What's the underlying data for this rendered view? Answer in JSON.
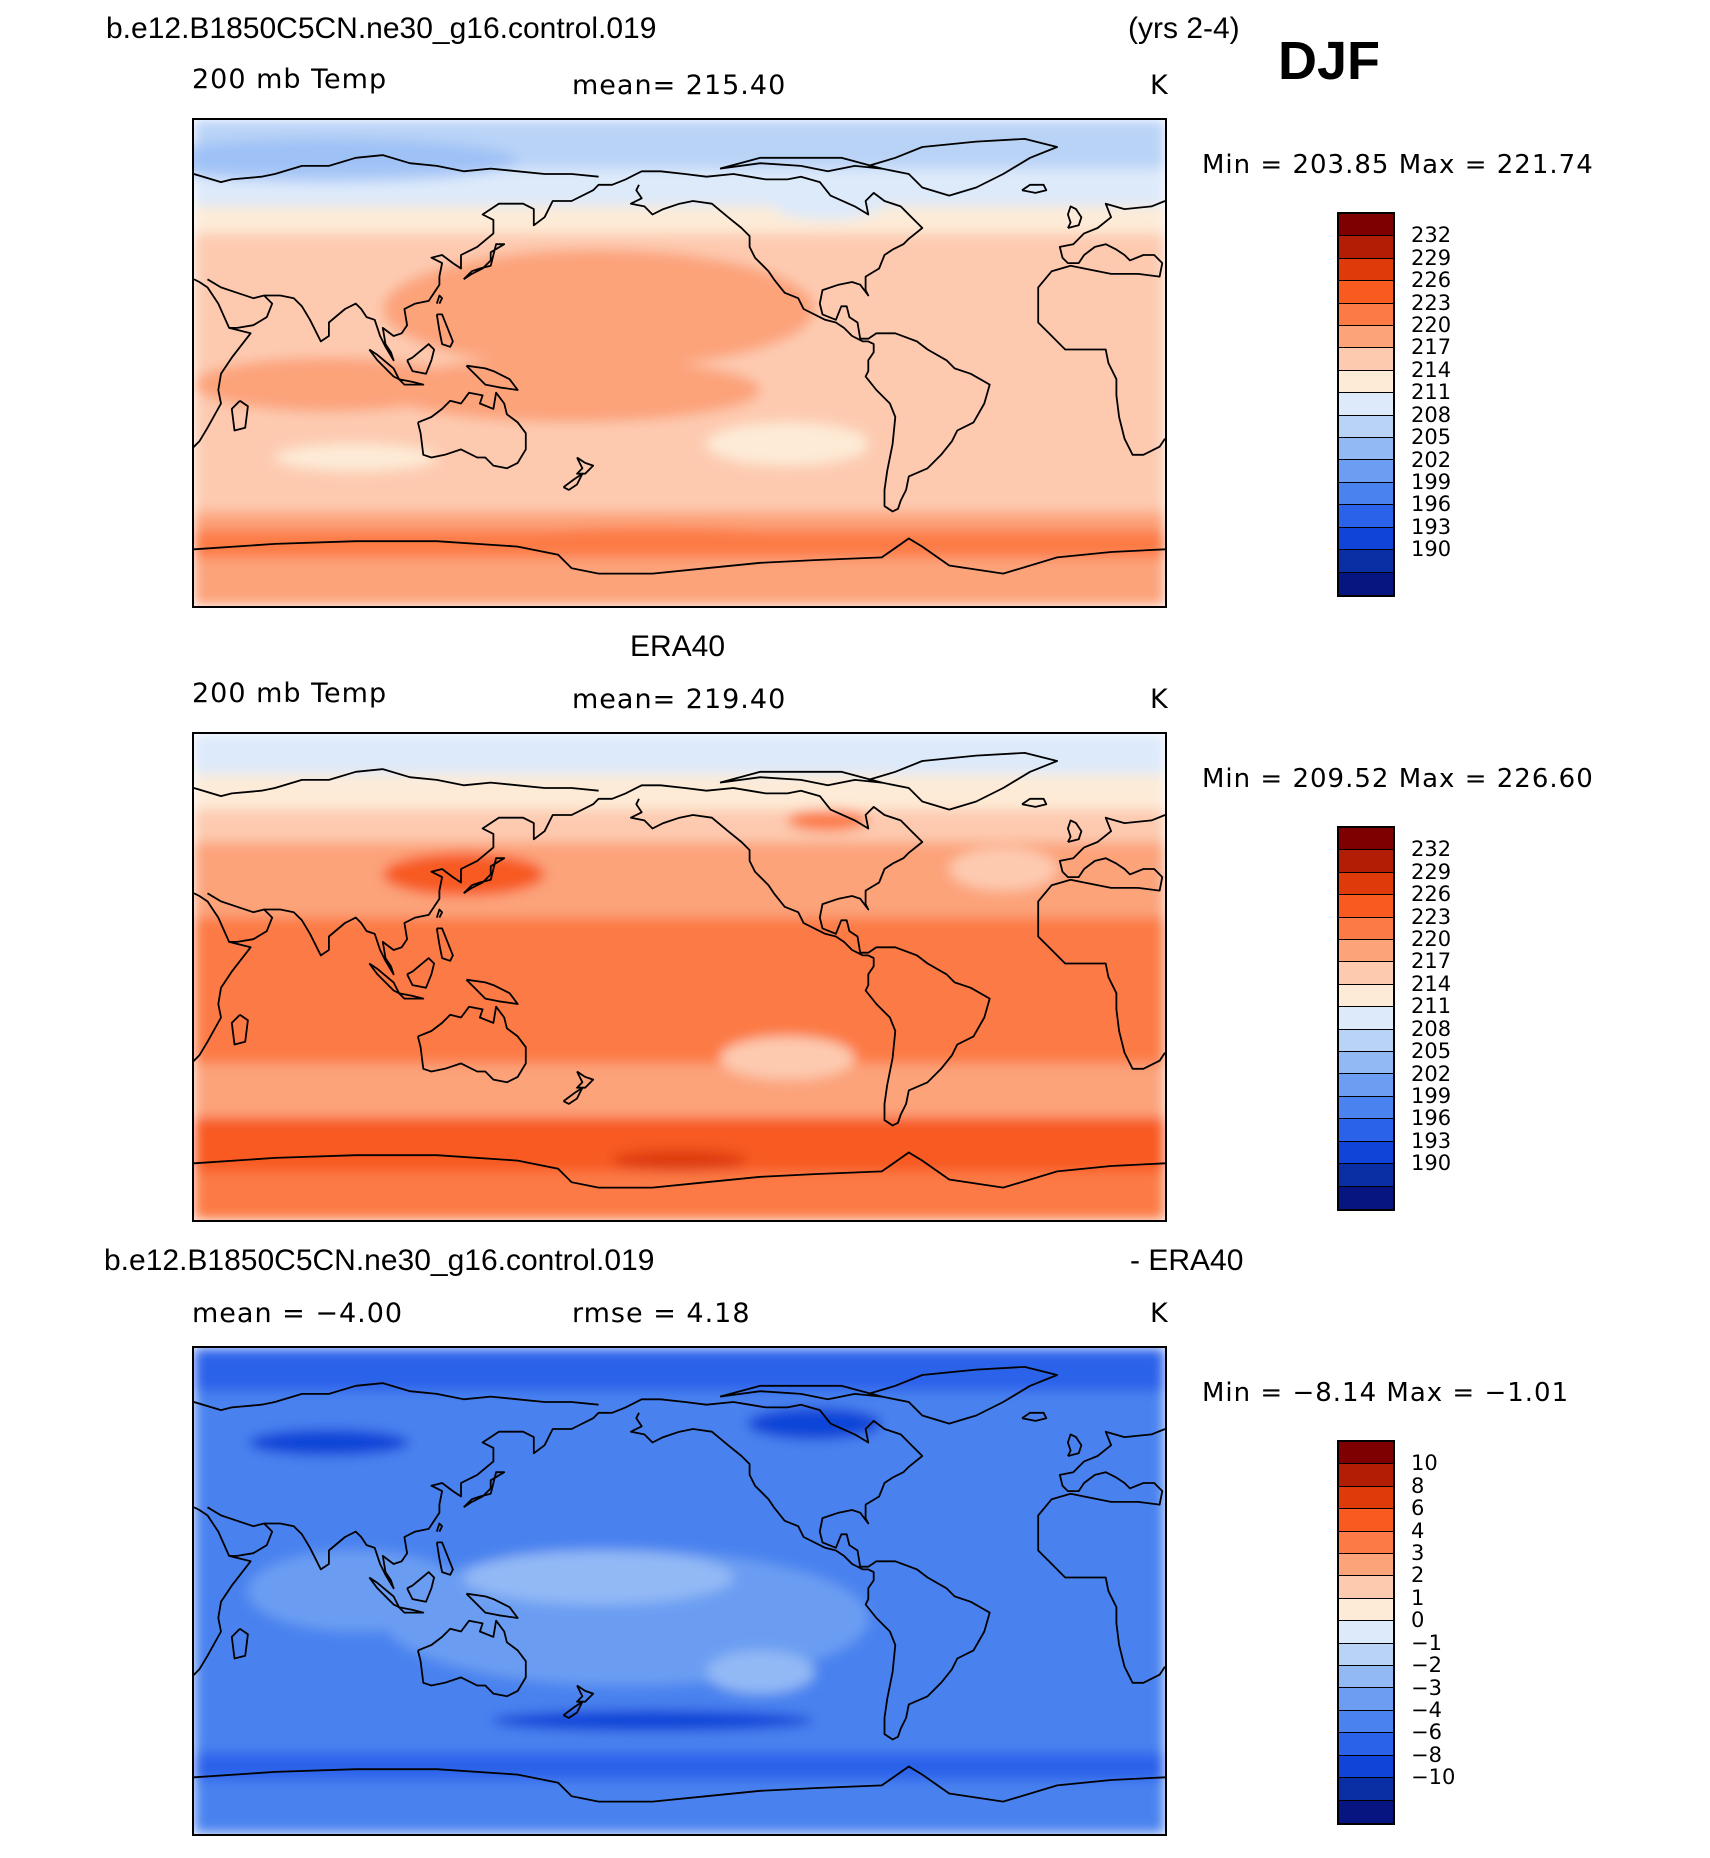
{
  "header": {
    "case_name": "b.e12.B1850C5CN.ne30_g16.control.019",
    "years": "(yrs 2-4)",
    "season": "DJF"
  },
  "panels": [
    {
      "id": "model",
      "title": "",
      "variable": "200 mb Temp",
      "stat": "mean=  215.40",
      "units": "K",
      "minmax": "Min  =  203.85  Max  =  221.74",
      "field": "model"
    },
    {
      "id": "obs",
      "title": "ERA40",
      "variable": "200 mb Temp",
      "stat": "mean=  219.40",
      "units": "K",
      "minmax": "Min  =  209.52  Max  =  226.60",
      "field": "obs"
    },
    {
      "id": "diff",
      "title_left": "b.e12.B1850C5CN.ne30_g16.control.019",
      "title_right": "- ERA40",
      "variable": "mean  =    −4.00",
      "stat": "rmse  =     4.18",
      "units": "K",
      "minmax": "Min  =    −8.14  Max  =   −1.01",
      "field": "diff"
    }
  ],
  "colorbars": {
    "temp": {
      "labels": [
        "232",
        "229",
        "226",
        "223",
        "220",
        "217",
        "214",
        "211",
        "208",
        "205",
        "202",
        "199",
        "196",
        "193",
        "190"
      ],
      "colors": [
        "#7f0000",
        "#b21d05",
        "#de3a0a",
        "#f85a20",
        "#fc7a45",
        "#fca37a",
        "#fdcab0",
        "#fdebd7",
        "#ddeafa",
        "#b9d3f7",
        "#93b9f5",
        "#6b9df2",
        "#4a82ef",
        "#2a62ea",
        "#1044d8",
        "#0a2ea3",
        "#06157f"
      ]
    },
    "diff": {
      "labels": [
        "10",
        "8",
        "6",
        "4",
        "3",
        "2",
        "1",
        "0",
        "−1",
        "−2",
        "−3",
        "−4",
        "−6",
        "−8",
        "−10"
      ],
      "colors": [
        "#7f0000",
        "#b21d05",
        "#de3a0a",
        "#f85a20",
        "#fc7a45",
        "#fca37a",
        "#fdcab0",
        "#fdebd7",
        "#ddeafa",
        "#b9d3f7",
        "#93b9f5",
        "#6b9df2",
        "#4a82ef",
        "#2a62ea",
        "#1044d8",
        "#0a2ea3",
        "#06157f"
      ]
    }
  }
}
